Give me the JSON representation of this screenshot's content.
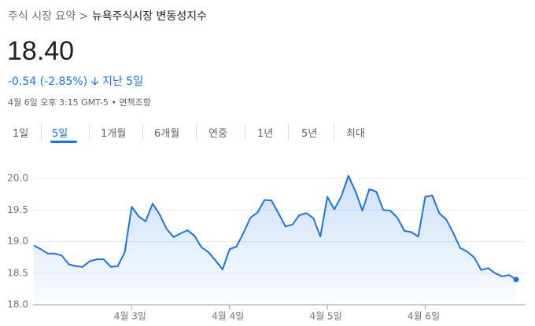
{
  "header": {
    "breadcrumb": "주식 시장 요약 >",
    "name": "뉴욕주식시장 변동성지수",
    "price": "18.40",
    "change": "-0.54 (-2.85%)",
    "period": "지난 5일",
    "timestamp": "4월 6일 오후 3:15 GMT-5 •",
    "disclaimer": "면책조항"
  },
  "tabs": [
    "1일",
    "5일",
    "1개월",
    "6개월",
    "연중",
    "1년",
    "5년",
    "최대"
  ],
  "selected_tab": "5일",
  "chart_data": {
    "type": "area",
    "color": "#1a73e8",
    "grid": true,
    "categories": [
      null,
      null,
      null,
      null,
      null,
      null,
      null,
      null,
      null,
      null,
      null,
      null,
      null,
      null,
      "4월 3일",
      null,
      null,
      null,
      null,
      null,
      null,
      null,
      null,
      null,
      null,
      null,
      null,
      null,
      "4월 4일",
      null,
      null,
      null,
      null,
      null,
      null,
      null,
      null,
      null,
      null,
      null,
      null,
      null,
      "4월 5일",
      null,
      null,
      null,
      null,
      null,
      null,
      null,
      null,
      null,
      null,
      null,
      null,
      null,
      "4월 6일",
      null,
      null,
      null,
      null,
      null,
      null,
      null,
      null,
      null,
      null,
      null,
      null,
      null
    ],
    "values": [
      18.94,
      18.88,
      18.81,
      18.81,
      18.78,
      18.64,
      18.61,
      18.6,
      18.69,
      18.72,
      18.72,
      18.6,
      18.61,
      18.83,
      19.55,
      19.4,
      19.32,
      19.6,
      19.43,
      19.2,
      19.07,
      19.13,
      19.18,
      19.09,
      18.91,
      18.83,
      18.7,
      18.56,
      18.88,
      18.92,
      19.14,
      19.38,
      19.46,
      19.66,
      19.65,
      19.45,
      19.24,
      19.27,
      19.42,
      19.45,
      19.37,
      19.08,
      19.71,
      19.51,
      19.72,
      20.04,
      19.8,
      19.49,
      19.83,
      19.79,
      19.5,
      19.49,
      19.38,
      19.17,
      19.15,
      19.08,
      19.71,
      19.73,
      19.45,
      19.35,
      19.14,
      18.9,
      18.84,
      18.75,
      18.55,
      18.58,
      18.5,
      18.45,
      18.47,
      18.4
    ],
    "ylim": [
      18,
      20.3
    ],
    "yticks": [
      {
        "value": 18,
        "label": "18.0"
      },
      18.5,
      {
        "value": 19,
        "label": "19.0"
      },
      19.5,
      {
        "value": 20,
        "label": "20.0"
      }
    ]
  }
}
